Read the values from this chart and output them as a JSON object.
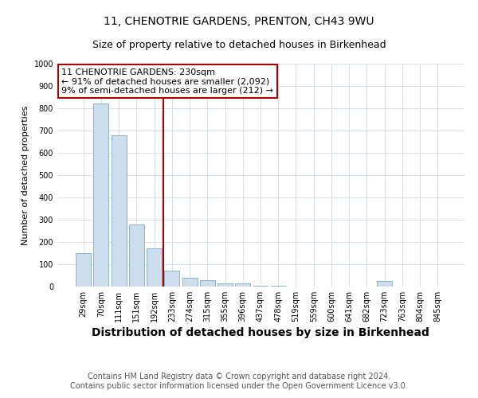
{
  "title": "11, CHENOTRIE GARDENS, PRENTON, CH43 9WU",
  "subtitle": "Size of property relative to detached houses in Birkenhead",
  "xlabel": "Distribution of detached houses by size in Birkenhead",
  "ylabel": "Number of detached properties",
  "categories": [
    "29sqm",
    "70sqm",
    "111sqm",
    "151sqm",
    "192sqm",
    "233sqm",
    "274sqm",
    "315sqm",
    "355sqm",
    "396sqm",
    "437sqm",
    "478sqm",
    "519sqm",
    "559sqm",
    "600sqm",
    "641sqm",
    "682sqm",
    "723sqm",
    "763sqm",
    "804sqm",
    "845sqm"
  ],
  "values": [
    150,
    820,
    680,
    280,
    170,
    70,
    40,
    30,
    15,
    15,
    5,
    5,
    0,
    0,
    0,
    0,
    0,
    25,
    0,
    0,
    0
  ],
  "bar_color": "#ccdded",
  "bar_edge_color": "#8ab4cc",
  "vline_index": 5,
  "vline_color": "#aa0000",
  "annotation_line1": "11 CHENOTRIE GARDENS: 230sqm",
  "annotation_line2": "← 91% of detached houses are smaller (2,092)",
  "annotation_line3": "9% of semi-detached houses are larger (212) →",
  "annotation_box_color": "#aa0000",
  "ylim": [
    0,
    1000
  ],
  "yticks": [
    0,
    100,
    200,
    300,
    400,
    500,
    600,
    700,
    800,
    900,
    1000
  ],
  "footer_line1": "Contains HM Land Registry data © Crown copyright and database right 2024.",
  "footer_line2": "Contains public sector information licensed under the Open Government Licence v3.0.",
  "background_color": "#ffffff",
  "plot_bg_color": "#ffffff",
  "grid_color": "#d0d8e0",
  "title_fontsize": 10,
  "subtitle_fontsize": 9,
  "xlabel_fontsize": 10,
  "ylabel_fontsize": 8,
  "tick_fontsize": 7,
  "footer_fontsize": 7,
  "annotation_fontsize": 8
}
